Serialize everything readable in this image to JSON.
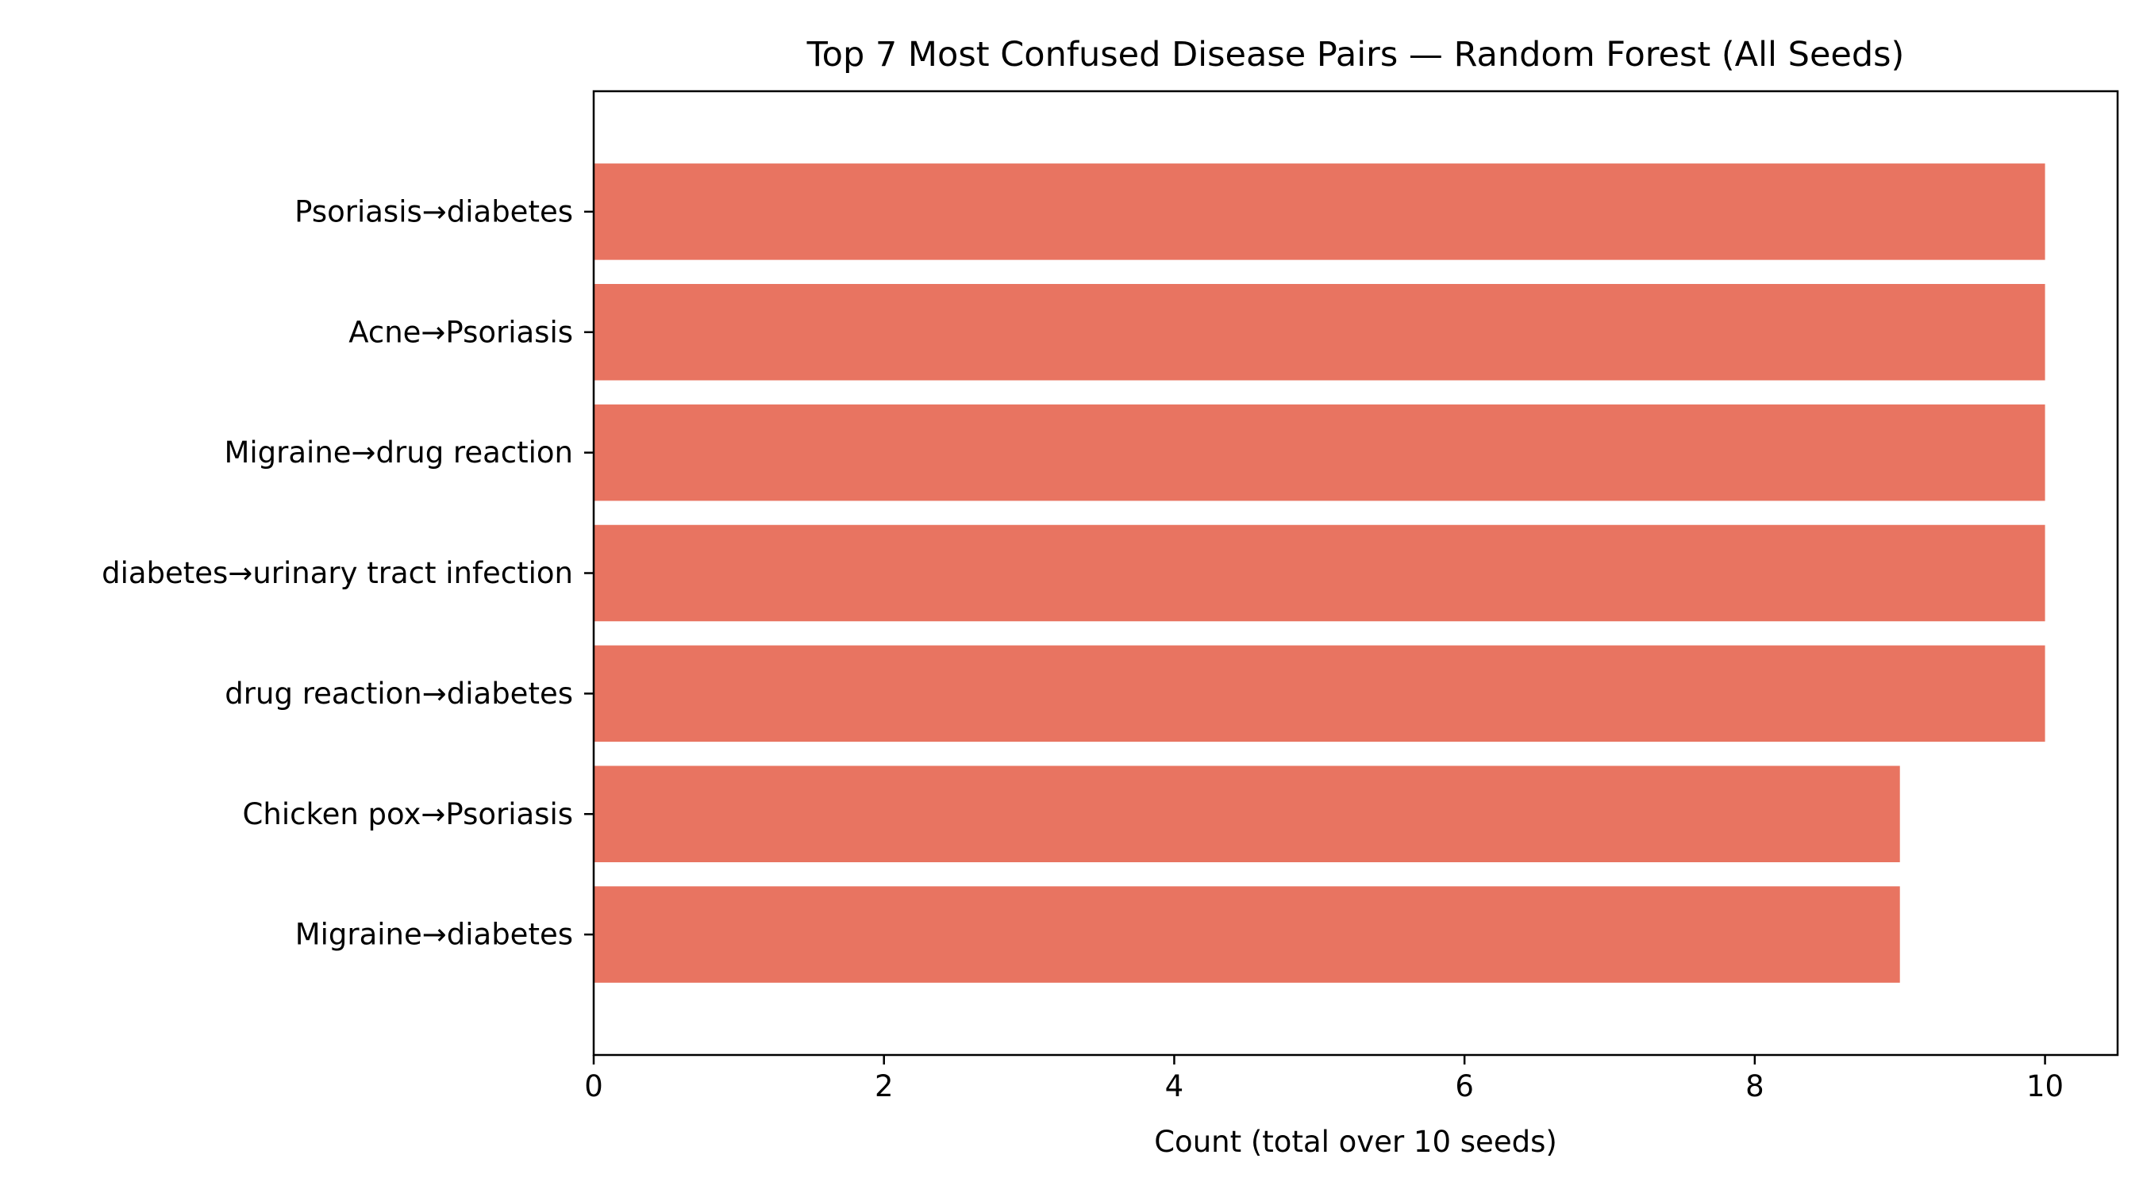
{
  "chart_data": {
    "type": "bar",
    "orientation": "horizontal",
    "title": "Top 7 Most Confused Disease Pairs — Random Forest (All Seeds)",
    "xlabel": "Count (total over 10 seeds)",
    "ylabel": "",
    "categories": [
      "Psoriasis→diabetes",
      "Acne→Psoriasis",
      "Migraine→drug reaction",
      "diabetes→urinary tract infection",
      "drug reaction→diabetes",
      "Chicken pox→Psoriasis",
      "Migraine→diabetes"
    ],
    "values": [
      10,
      10,
      10,
      10,
      10,
      9,
      9
    ],
    "xlim": [
      0,
      10.5
    ],
    "xticks": [
      0,
      2,
      4,
      6,
      8,
      10
    ],
    "grid": false,
    "legend": "none",
    "bar_color": "#e87461"
  }
}
